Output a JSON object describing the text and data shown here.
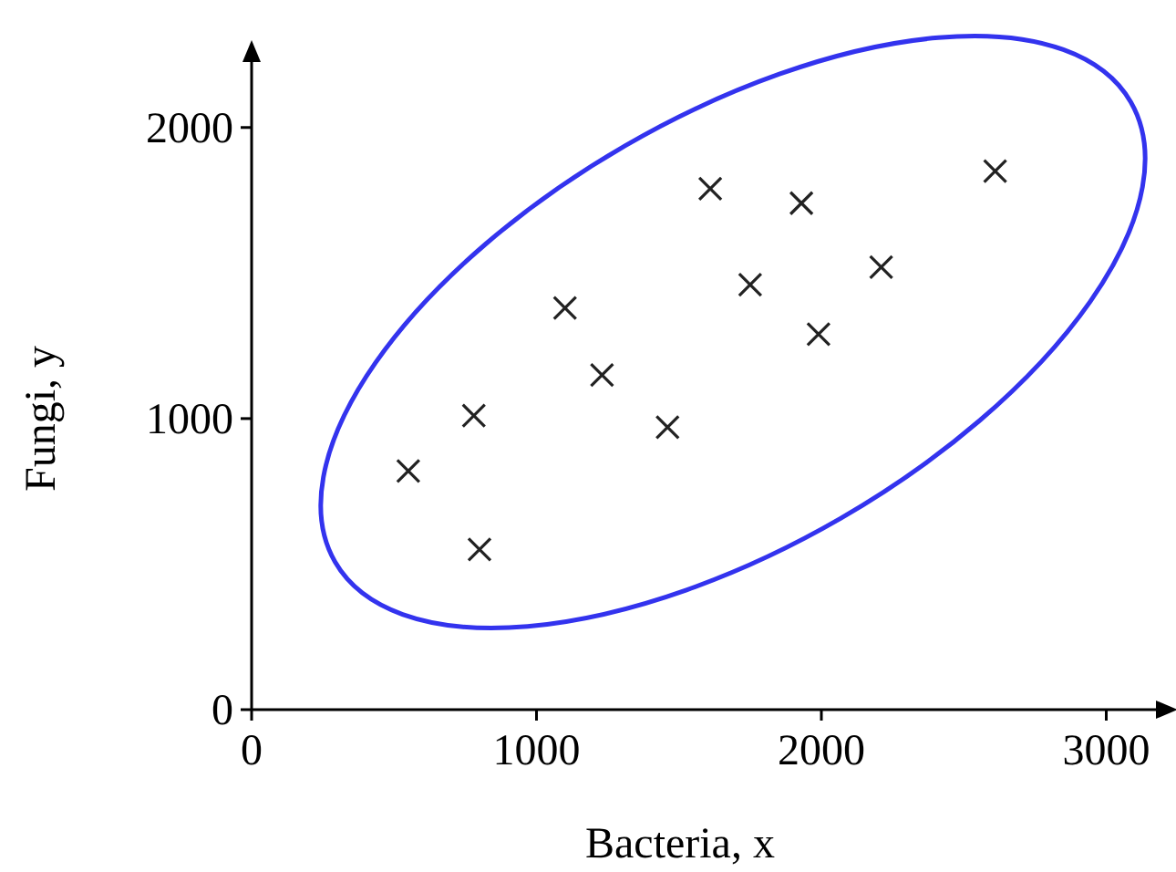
{
  "chart_data": {
    "type": "scatter",
    "xlabel": "Bacteria, x",
    "ylabel": "Fungi, y",
    "x": [
      550,
      780,
      800,
      1100,
      1230,
      1460,
      1610,
      1750,
      1930,
      1990,
      2210,
      2610
    ],
    "values": [
      820,
      1010,
      550,
      1380,
      1150,
      970,
      1790,
      1460,
      1740,
      1290,
      1520,
      1850
    ],
    "color": "#222222",
    "marker": "cross",
    "xlim": [
      0,
      3200
    ],
    "ylim": [
      0,
      2250
    ],
    "xticks": [
      0,
      1000,
      2000,
      3000
    ],
    "yticks": [
      0,
      1000,
      2000
    ]
  }
}
